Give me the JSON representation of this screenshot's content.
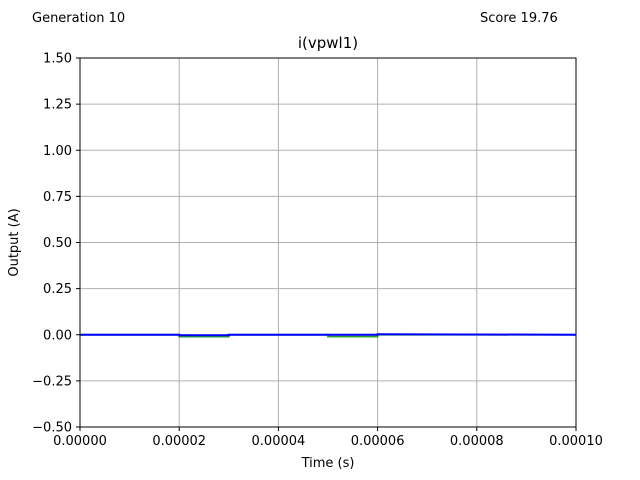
{
  "header": {
    "generation": "Generation 10",
    "score": "Score 19.76"
  },
  "colors": {
    "target": "#2ca02c",
    "output": "#0000ff",
    "grid": "#b0b0b0"
  },
  "chart_data": {
    "type": "line",
    "title": "i(vpwl1)",
    "xlabel": "Time (s)",
    "ylabel": "Output (A)",
    "xlim": [
      0,
      0.0001
    ],
    "ylim": [
      -0.5,
      1.5
    ],
    "grid": true,
    "x_ticks": [
      "0.00000",
      "0.00002",
      "0.00004",
      "0.00006",
      "0.00008",
      "0.00010"
    ],
    "x_tick_values": [
      0,
      2e-05,
      4e-05,
      6e-05,
      8e-05,
      0.0001
    ],
    "y_ticks": [
      "1.50",
      "1.25",
      "1.00",
      "0.75",
      "0.50",
      "0.25",
      "0.00",
      "−0.25",
      "−0.50"
    ],
    "y_tick_values": [
      1.5,
      1.25,
      1.0,
      0.75,
      0.5,
      0.25,
      0.0,
      -0.25,
      -0.5
    ],
    "series": [
      {
        "color": "#2ca02c",
        "x": [
          0,
          2e-05,
          2e-05,
          3e-05,
          3e-05,
          5e-05,
          5e-05,
          6e-05,
          6e-05,
          0.0001
        ],
        "y": [
          0,
          0,
          -0.01,
          -0.01,
          0,
          0,
          -0.01,
          -0.01,
          0,
          0
        ]
      },
      {
        "color": "#0000ff",
        "x": [
          0,
          2e-05,
          2e-05,
          3e-05,
          3e-05,
          6e-05,
          6e-05,
          0.0001
        ],
        "y": [
          0,
          0,
          -0.003,
          -0.003,
          0,
          0,
          0.003,
          0
        ]
      }
    ]
  }
}
